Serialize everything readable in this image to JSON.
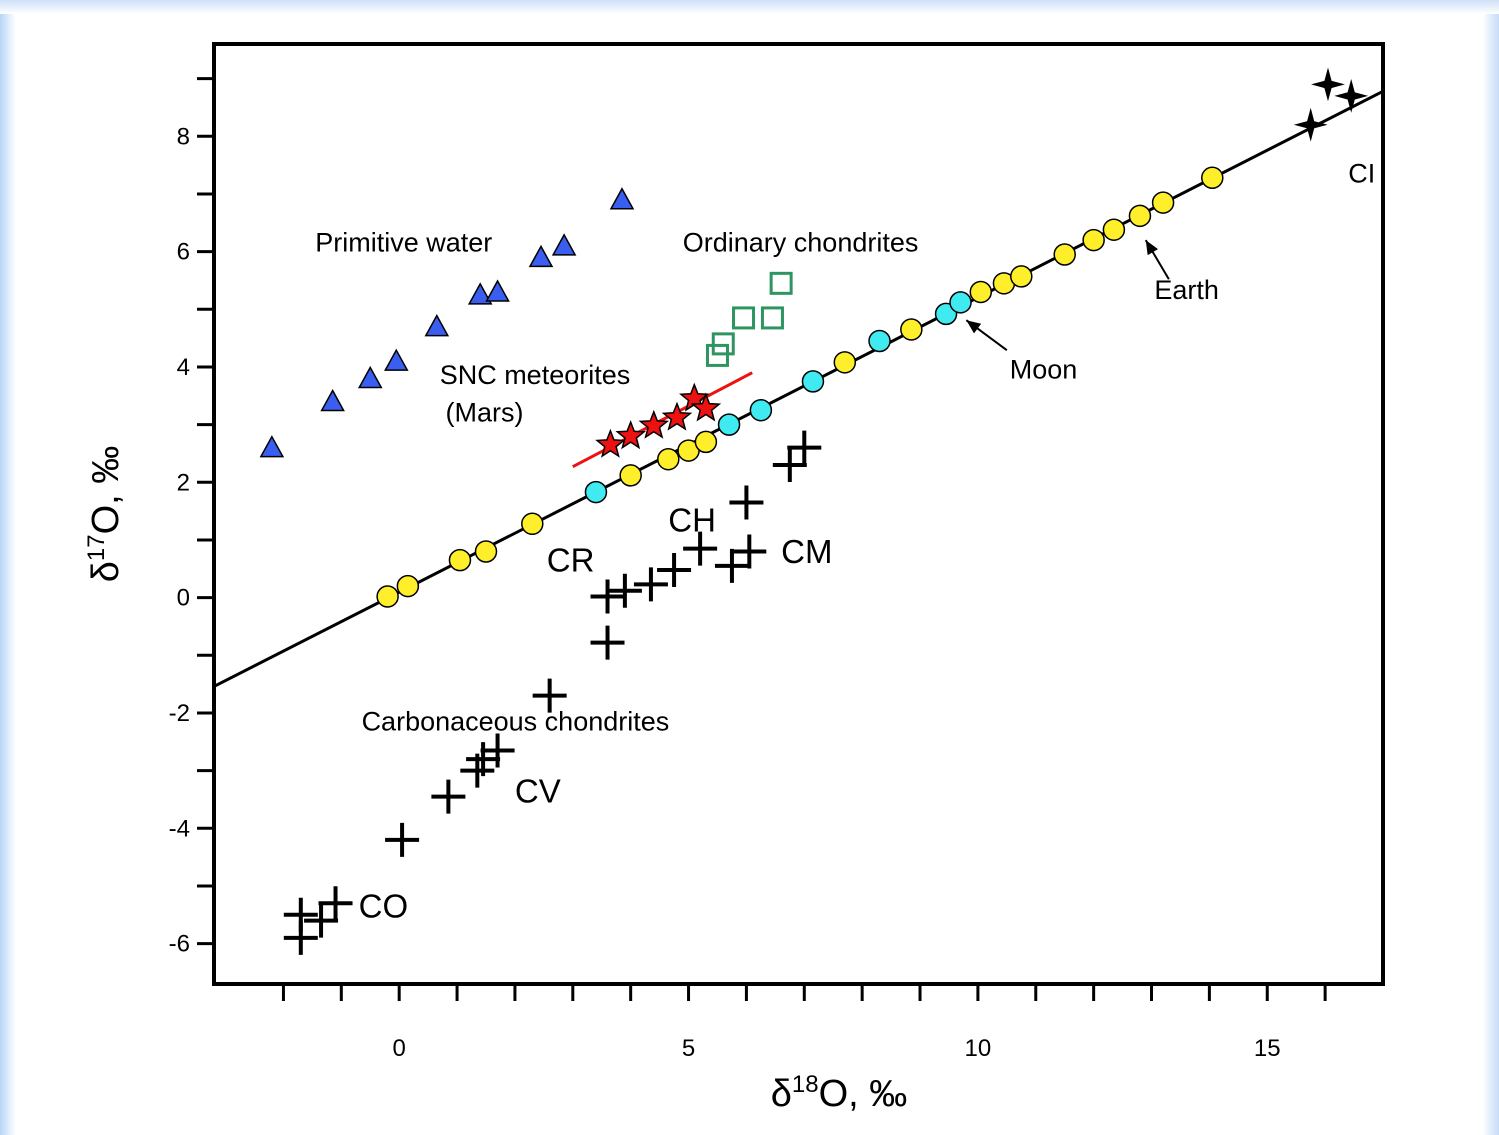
{
  "chart_data": {
    "type": "scatter",
    "title": "",
    "xlabel": {
      "base": "δ",
      "sup": "18",
      "rest": "O, ‰"
    },
    "ylabel": {
      "base": "δ",
      "sup": "17",
      "rest": "O, ‰"
    },
    "xlim": [
      -3.2,
      17
    ],
    "ylim": [
      -6.7,
      9.6
    ],
    "x_ticks": [
      0,
      5,
      10,
      15
    ],
    "y_ticks": [
      -6,
      -4,
      -2,
      0,
      2,
      4,
      6,
      8
    ],
    "grid": false,
    "legend": "none",
    "series": [
      {
        "marker": "triangle",
        "color": "#3a5ff0",
        "points": [
          [
            -2.2,
            2.6
          ],
          [
            -1.15,
            3.4
          ],
          [
            -0.5,
            3.8
          ],
          [
            -0.05,
            4.1
          ],
          [
            0.65,
            4.7
          ],
          [
            1.4,
            5.25
          ],
          [
            1.7,
            5.3
          ],
          [
            2.45,
            5.9
          ],
          [
            2.85,
            6.1
          ],
          [
            3.85,
            6.9
          ]
        ]
      },
      {
        "marker": "square-open",
        "color": "#2e9460",
        "points": [
          [
            5.5,
            4.2
          ],
          [
            5.6,
            4.4
          ],
          [
            5.95,
            4.85
          ],
          [
            6.45,
            4.85
          ],
          [
            6.6,
            5.45
          ]
        ]
      },
      {
        "marker": "star",
        "color": "#ee1111",
        "points": [
          [
            3.65,
            2.65
          ],
          [
            4.0,
            2.8
          ],
          [
            4.4,
            2.98
          ],
          [
            4.8,
            3.12
          ],
          [
            5.1,
            3.45
          ],
          [
            5.3,
            3.28
          ]
        ]
      },
      {
        "marker": "circle",
        "color": "#ffef2a",
        "points": [
          [
            -0.2,
            0.02
          ],
          [
            0.15,
            0.2
          ],
          [
            1.05,
            0.65
          ],
          [
            1.5,
            0.8
          ],
          [
            2.3,
            1.28
          ],
          [
            4.0,
            2.12
          ],
          [
            4.65,
            2.4
          ],
          [
            5.0,
            2.55
          ],
          [
            5.3,
            2.7
          ],
          [
            7.7,
            4.08
          ],
          [
            8.85,
            4.65
          ],
          [
            10.05,
            5.3
          ],
          [
            10.45,
            5.45
          ],
          [
            10.75,
            5.57
          ],
          [
            11.5,
            5.95
          ],
          [
            12.0,
            6.2
          ],
          [
            12.35,
            6.38
          ],
          [
            12.8,
            6.62
          ],
          [
            13.2,
            6.85
          ],
          [
            14.05,
            7.28
          ]
        ]
      },
      {
        "marker": "circle",
        "color": "#3feaf1",
        "points": [
          [
            3.4,
            1.83
          ],
          [
            5.7,
            3.0
          ],
          [
            6.25,
            3.25
          ],
          [
            7.15,
            3.75
          ],
          [
            8.3,
            4.45
          ],
          [
            9.45,
            4.92
          ],
          [
            9.7,
            5.12
          ]
        ]
      },
      {
        "marker": "plus",
        "color": "#000000",
        "points": [
          [
            -1.7,
            -5.9
          ],
          [
            -1.7,
            -5.5
          ],
          [
            -1.35,
            -5.6
          ],
          [
            -1.1,
            -5.3
          ],
          [
            0.85,
            -3.45
          ],
          [
            1.35,
            -3.0
          ],
          [
            1.45,
            -2.8
          ],
          [
            1.7,
            -2.65
          ],
          [
            2.6,
            -1.7
          ],
          [
            3.6,
            0.02
          ],
          [
            3.9,
            0.12
          ],
          [
            4.35,
            0.23
          ],
          [
            4.75,
            0.48
          ],
          [
            5.2,
            0.85
          ],
          [
            5.75,
            0.55
          ],
          [
            6.05,
            0.8
          ],
          [
            3.6,
            -0.78
          ],
          [
            6.0,
            1.65
          ],
          [
            6.75,
            2.3
          ],
          [
            7.0,
            2.6
          ],
          [
            0.05,
            -4.2
          ]
        ]
      },
      {
        "marker": "star4",
        "color": "#000000",
        "points": [
          [
            15.75,
            8.2
          ],
          [
            16.05,
            8.9
          ],
          [
            16.45,
            8.7
          ]
        ]
      }
    ],
    "lines": [
      {
        "color": "#000000",
        "from": [
          -3.2,
          -1.54
        ],
        "to": [
          17,
          8.78
        ]
      },
      {
        "color": "#ee1111",
        "from": [
          3.0,
          2.27
        ],
        "to": [
          6.1,
          3.9
        ]
      }
    ],
    "annotations": [
      {
        "text": "Primitive water",
        "x": -1.45,
        "y": 6.0,
        "size": "small"
      },
      {
        "text": "Ordinary chondrites",
        "x": 4.9,
        "y": 6.0,
        "size": "small"
      },
      {
        "text": "SNC meteorites",
        "x": 0.7,
        "y": 3.7,
        "size": "small"
      },
      {
        "text": "(Mars)",
        "x": 0.8,
        "y": 3.05,
        "size": "small"
      },
      {
        "text": "Carbonaceous chondrites",
        "x": -0.65,
        "y": -2.3,
        "size": "small"
      },
      {
        "text": "Earth",
        "x": 13.05,
        "y": 5.18,
        "size": "small"
      },
      {
        "text": "Moon",
        "x": 10.55,
        "y": 3.8,
        "size": "small"
      },
      {
        "text": "CI",
        "x": 16.4,
        "y": 7.2,
        "size": "small"
      },
      {
        "text": "CH",
        "x": 4.65,
        "y": 1.15,
        "size": "large"
      },
      {
        "text": "CR",
        "x": 2.55,
        "y": 0.45,
        "size": "large"
      },
      {
        "text": "CM",
        "x": 6.6,
        "y": 0.6,
        "size": "large"
      },
      {
        "text": "CV",
        "x": 2.0,
        "y": -3.55,
        "size": "large"
      },
      {
        "text": "CO",
        "x": -0.7,
        "y": -5.55,
        "size": "large"
      }
    ],
    "arrows": [
      {
        "target": "Earth",
        "from": [
          13.3,
          5.52
        ],
        "to": [
          12.9,
          6.2
        ]
      },
      {
        "target": "Moon",
        "from": [
          10.5,
          4.29
        ],
        "to": [
          9.8,
          4.81
        ]
      }
    ]
  }
}
